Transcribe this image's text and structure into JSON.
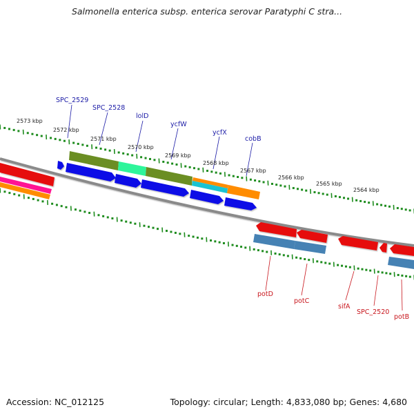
{
  "title": "Salmonella enterica subsp. enterica serovar Paratyphi C stra...",
  "footer": {
    "accession": "Accession: NC_012125",
    "topology": "Topology: circular; Length: 4,833,080 bp; Genes: 4,680"
  },
  "ruler_labels": [
    "2573 kbp",
    "2572 kbp",
    "2571 kbp",
    "2570 kbp",
    "2569 kbp",
    "2568 kbp",
    "2567 kbp",
    "2566 kbp",
    "2565 kbp",
    "2564 kbp"
  ],
  "top_gene_labels": [
    "SPC_2529",
    "SPC_2528",
    "lolD",
    "ycfW",
    "ycfX",
    "cobB"
  ],
  "bottom_gene_labels": [
    "potD",
    "potC",
    "sifA",
    "SPC_2520",
    "potB"
  ],
  "colors": {
    "genome_line": "#8a8a8a",
    "tick": "#1e8c1e",
    "forward_cds": "#0a0ae6",
    "reverse_cds": "#e60a0a",
    "cog_olive": "#6b8e23",
    "cog_spring_green": "#2ef59a",
    "cog_orange": "#ff8c00",
    "cog_cyan": "#19c3d2",
    "cog_steel_blue": "#4682b4",
    "cog_pink": "#ff1493",
    "label_forward": "#1a1aa6",
    "label_reverse": "#c8151c"
  }
}
